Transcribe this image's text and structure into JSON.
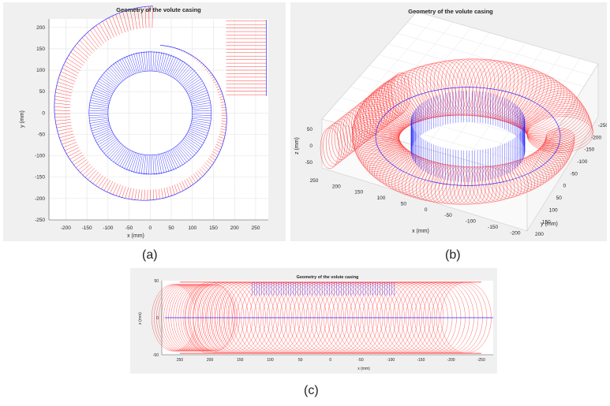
{
  "captions": [
    "(a)",
    "(b)",
    "(c)"
  ],
  "colors": {
    "outer": "#ff2a2a",
    "inner": "#2a2aff",
    "panel_bg": "#f0f0f0",
    "axes_bg": "#ffffff"
  },
  "chart_data": [
    {
      "type": "line",
      "title": "Geometry of the volute casing",
      "xlabel": "x (mm)",
      "ylabel": "y (mm)",
      "xlim": [
        -240,
        280
      ],
      "ylim": [
        -250,
        220
      ],
      "xticks": [
        -200,
        -150,
        -100,
        -50,
        0,
        50,
        100,
        150,
        200,
        250
      ],
      "yticks": [
        200,
        150,
        100,
        50,
        0,
        -50,
        -100,
        -150,
        -200,
        -250
      ],
      "grid": true,
      "series": [
        {
          "color": "red",
          "values_desc": [],
          "inner_radius_start": 150,
          "outer_radius_start": 160,
          "outer_radius_end": 250,
          "inner_radius_end": 200
        },
        {
          "color": "blue",
          "inner_radius": 100,
          "outer_radius": 145
        }
      ]
    },
    {
      "type": "line",
      "title": "Geometry of the volute casing",
      "xlabel": "x (mm)",
      "ylabel": "y (mm)",
      "zlabel": "z (mm)",
      "xticks": [
        250,
        200,
        150,
        100,
        50,
        0,
        -50,
        -100,
        -150,
        -200
      ],
      "yticks": [
        -250,
        -200,
        -150,
        -100,
        -50,
        0,
        50,
        100,
        150,
        200
      ],
      "zticks": [
        50,
        0,
        -50
      ],
      "grid": true
    },
    {
      "type": "line",
      "title": "Geometry of the volute casing",
      "xlabel": "x (mm)",
      "ylabel": "z (mm)",
      "xlim": [
        280,
        -270
      ],
      "ylim": [
        -50,
        50
      ],
      "xticks": [
        250,
        200,
        150,
        100,
        50,
        0,
        -50,
        -100,
        -150,
        -200,
        -250
      ],
      "xtick_labels": [
        "250",
        "200",
        "150",
        "100",
        "50",
        "0",
        "-50",
        "-100",
        "-150",
        "-200",
        "-250"
      ],
      "yticks": [
        50,
        0,
        -50
      ],
      "grid": false
    }
  ],
  "labels": {
    "xmm": "x (mm)",
    "ymm": "y (mm)",
    "zmm": "z (mm)"
  }
}
